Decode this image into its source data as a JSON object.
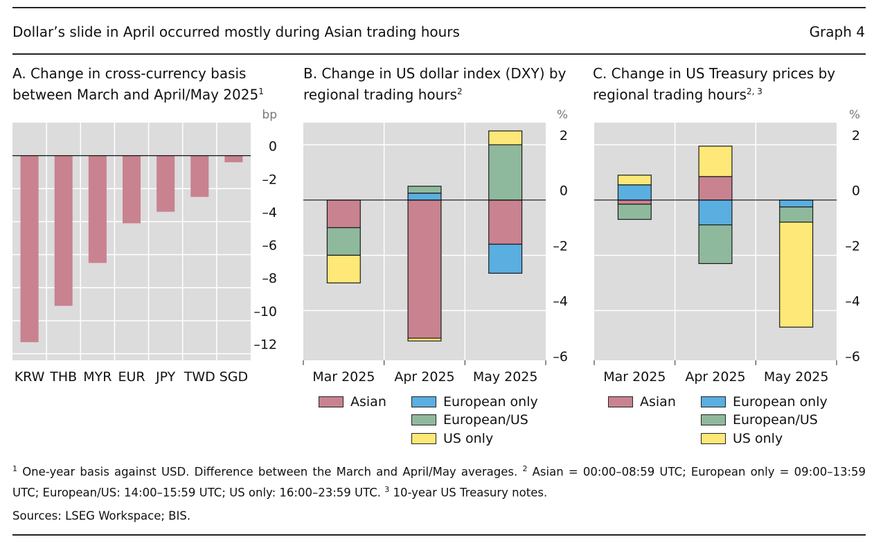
{
  "header": {
    "title": "Dollar’s slide in April occurred mostly during Asian trading hours",
    "graph_label": "Graph 4"
  },
  "panels": {
    "a": {
      "title": "A. Change in cross-currency basis between March and April/May 2025",
      "sup": "1",
      "unit": "bp"
    },
    "b": {
      "title": "B. Change in US dollar index (DXY) by regional trading hours",
      "sup": "2",
      "unit": "%"
    },
    "c": {
      "title": "C. Change in US Treasury prices by regional trading hours",
      "sup": "2, 3",
      "unit": "%"
    }
  },
  "legend": {
    "asian": "Asian",
    "european_only": "European only",
    "european_us": "European/US",
    "us_only": "US only"
  },
  "colors": {
    "asian": "#c98290",
    "european_only": "#5aaee0",
    "european_us": "#8fb99c",
    "us_only": "#fde878",
    "plot_bg": "#dcdcdc",
    "grid": "#ffffff"
  },
  "footnotes": {
    "n1_sup": "1",
    "n1": "One-year basis against USD. Difference between the March and April/May averages.",
    "n2_sup": "2",
    "n2": "Asian = 00:00–08:59 UTC; European only = 09:00–13:59 UTC; European/US: 14:00–15:59 UTC; US only: 16:00–23:59 UTC.",
    "n3_sup": "3",
    "n3": "10-year US Treasury notes."
  },
  "sources": "Sources: LSEG Workspace; BIS.",
  "chart_data": [
    {
      "id": "a",
      "type": "bar",
      "title": "A. Change in cross-currency basis between March and April/May 2025",
      "ylabel": "bp",
      "ylim": [
        -12.4,
        2
      ],
      "yticks": [
        0,
        -2,
        -4,
        -6,
        -8,
        -10,
        -12
      ],
      "ytick_labels": [
        "0",
        "–2",
        "–4",
        "–6",
        "–8",
        "–10",
        "–12"
      ],
      "categories": [
        "KRW",
        "THB",
        "MYR",
        "EUR",
        "JPY",
        "TWD",
        "SGD"
      ],
      "values": [
        -11.3,
        -9.1,
        -6.5,
        -4.1,
        -3.4,
        -2.5,
        -0.4
      ]
    },
    {
      "id": "b",
      "type": "bar",
      "stacked": true,
      "title": "B. Change in US dollar index (DXY) by regional trading hours",
      "ylabel": "%",
      "ylim": [
        -5.8,
        2.8
      ],
      "yticks": [
        2,
        0,
        -2,
        -4,
        -6
      ],
      "ytick_labels": [
        "2",
        "0",
        "–2",
        "–4",
        "–6"
      ],
      "categories": [
        "Mar 2025",
        "Apr 2025",
        "May 2025"
      ],
      "series": [
        {
          "name": "Asian",
          "key": "asian",
          "values": [
            -1.0,
            -5.0,
            -1.6
          ]
        },
        {
          "name": "European only",
          "key": "european_only",
          "values": [
            0,
            0.25,
            -1.05
          ]
        },
        {
          "name": "European/US",
          "key": "european_us",
          "values": [
            -1.0,
            0.25,
            2.0
          ]
        },
        {
          "name": "US only",
          "key": "us_only",
          "values": [
            -1.0,
            -0.1,
            0.5
          ]
        }
      ]
    },
    {
      "id": "c",
      "type": "bar",
      "stacked": true,
      "title": "C. Change in US Treasury prices by regional trading hours",
      "ylabel": "%",
      "ylim": [
        -5.8,
        2.8
      ],
      "yticks": [
        2,
        0,
        -2,
        -4,
        -6
      ],
      "ytick_labels": [
        "2",
        "0",
        "–2",
        "–4",
        "–6"
      ],
      "categories": [
        "Mar 2025",
        "Apr 2025",
        "May 2025"
      ],
      "series": [
        {
          "name": "Asian",
          "key": "asian",
          "values": [
            -0.15,
            0.85,
            0
          ]
        },
        {
          "name": "European only",
          "key": "european_only",
          "values": [
            0.55,
            -0.9,
            -0.25
          ]
        },
        {
          "name": "European/US",
          "key": "european_us",
          "values": [
            -0.55,
            -1.4,
            -0.55
          ]
        },
        {
          "name": "US only",
          "key": "us_only",
          "values": [
            0.35,
            1.1,
            -3.8
          ]
        }
      ]
    }
  ]
}
